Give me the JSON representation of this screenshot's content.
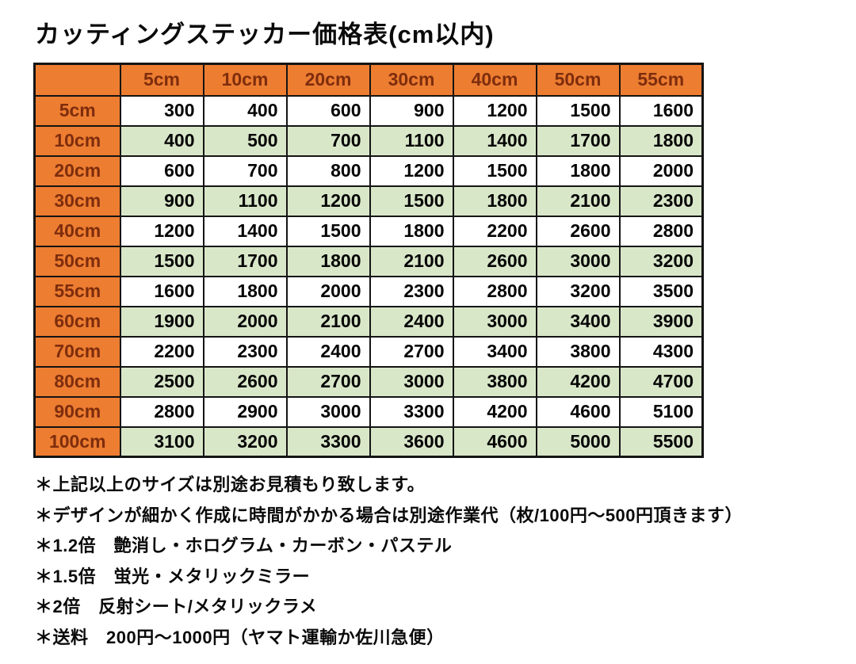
{
  "page": {
    "title": "カッティングステッカー価格表(cm以内)"
  },
  "table": {
    "corner_label": "",
    "col_headers": [
      "5cm",
      "10cm",
      "20cm",
      "30cm",
      "40cm",
      "50cm",
      "55cm"
    ],
    "rows": [
      {
        "label": "5cm",
        "values": [
          "300",
          "400",
          "600",
          "900",
          "1200",
          "1500",
          "1600"
        ]
      },
      {
        "label": "10cm",
        "values": [
          "400",
          "500",
          "700",
          "1100",
          "1400",
          "1700",
          "1800"
        ]
      },
      {
        "label": "20cm",
        "values": [
          "600",
          "700",
          "800",
          "1200",
          "1500",
          "1800",
          "2000"
        ]
      },
      {
        "label": "30cm",
        "values": [
          "900",
          "1100",
          "1200",
          "1500",
          "1800",
          "2100",
          "2300"
        ]
      },
      {
        "label": "40cm",
        "values": [
          "1200",
          "1400",
          "1500",
          "1800",
          "2200",
          "2600",
          "2800"
        ]
      },
      {
        "label": "50cm",
        "values": [
          "1500",
          "1700",
          "1800",
          "2100",
          "2600",
          "3000",
          "3200"
        ]
      },
      {
        "label": "55cm",
        "values": [
          "1600",
          "1800",
          "2000",
          "2300",
          "2800",
          "3200",
          "3500"
        ]
      },
      {
        "label": "60cm",
        "values": [
          "1900",
          "2000",
          "2100",
          "2400",
          "3000",
          "3400",
          "3900"
        ]
      },
      {
        "label": "70cm",
        "values": [
          "2200",
          "2300",
          "2400",
          "2700",
          "3400",
          "3800",
          "4300"
        ]
      },
      {
        "label": "80cm",
        "values": [
          "2500",
          "2600",
          "2700",
          "3000",
          "3800",
          "4200",
          "4700"
        ]
      },
      {
        "label": "90cm",
        "values": [
          "2800",
          "2900",
          "3000",
          "3300",
          "4200",
          "4600",
          "5100"
        ]
      },
      {
        "label": "100cm",
        "values": [
          "3100",
          "3200",
          "3300",
          "3600",
          "4600",
          "5000",
          "5500"
        ]
      }
    ]
  },
  "notes": [
    "＊上記以上のサイズは別途お見積もり致します。",
    "＊デザインが細かく作成に時間がかかる場合は別途作業代（枚/100円～500円頂きます）",
    "＊1.2倍　艶消し・ホログラム・カーボン・パステル",
    "＊1.5倍　蛍光・メタリックミラー",
    "＊2倍　反射シート/メタリックラメ",
    "＊送料　200円～1000円（ヤマト運輸か佐川急便）"
  ],
  "colors": {
    "header_bg": "#ED7D31",
    "header_text": "#7E2D0D",
    "row_alt_bg": "#D9E7C9",
    "row_bg": "#FFFFFF",
    "border": "#141414",
    "text": "#0E0E0E"
  }
}
